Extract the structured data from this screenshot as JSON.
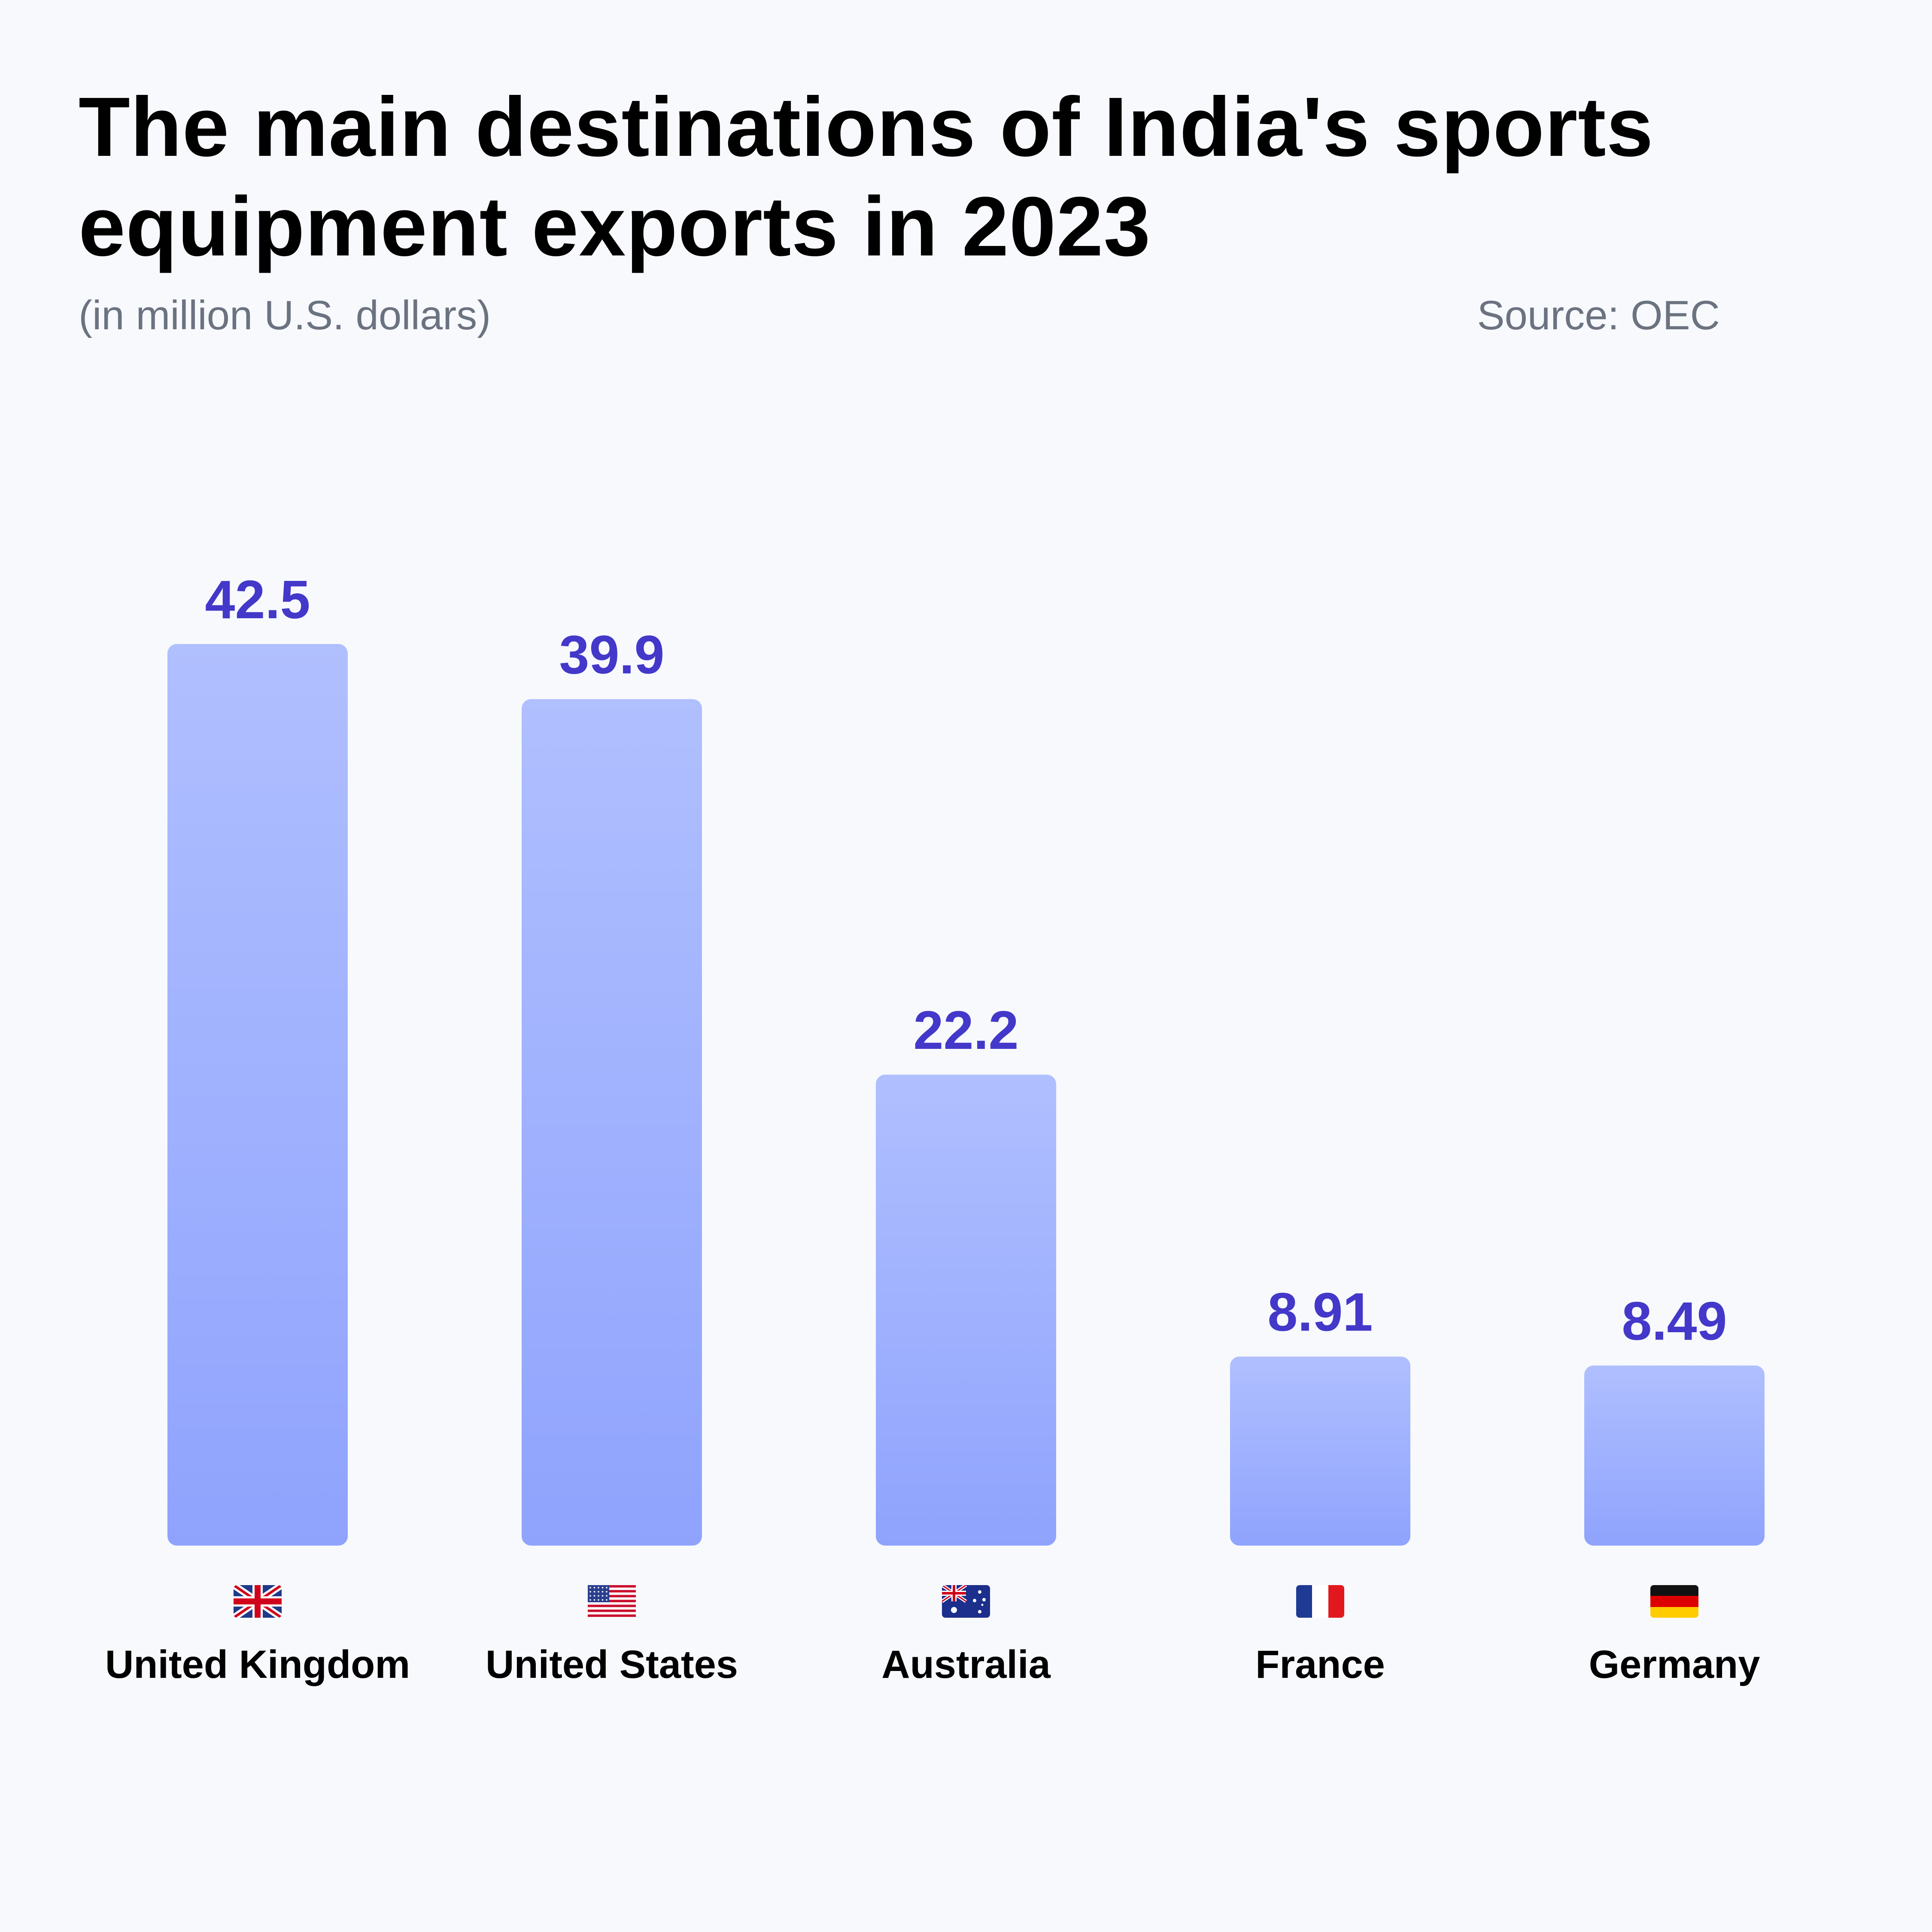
{
  "header": {
    "title": "The main destinations of India's sports equipment exports in 2023",
    "subtitle": "(in million U.S. dollars)",
    "source": "Source: OEC"
  },
  "colors": {
    "background": "#f7f9fd",
    "bar_top": "#b0bffe",
    "bar_bottom": "#8fa3fd",
    "value_label": "#4338c9"
  },
  "chart_data": {
    "type": "bar",
    "title": "The main destinations of India's sports equipment exports in 2023",
    "subtitle": "(in million U.S. dollars)",
    "categories": [
      "United Kingdom",
      "United States",
      "Australia",
      "France",
      "Germany"
    ],
    "values": [
      42.5,
      39.9,
      22.2,
      8.91,
      8.49
    ],
    "value_labels": [
      "42.5",
      "39.9",
      "22.2",
      "8.91",
      "8.49"
    ],
    "flag_icons": [
      "uk-flag-icon",
      "us-flag-icon",
      "australia-flag-icon",
      "france-flag-icon",
      "germany-flag-icon"
    ],
    "xlabel": "",
    "ylabel": "",
    "ylim": [
      0,
      42.5
    ],
    "grid": false,
    "legend": "none"
  }
}
